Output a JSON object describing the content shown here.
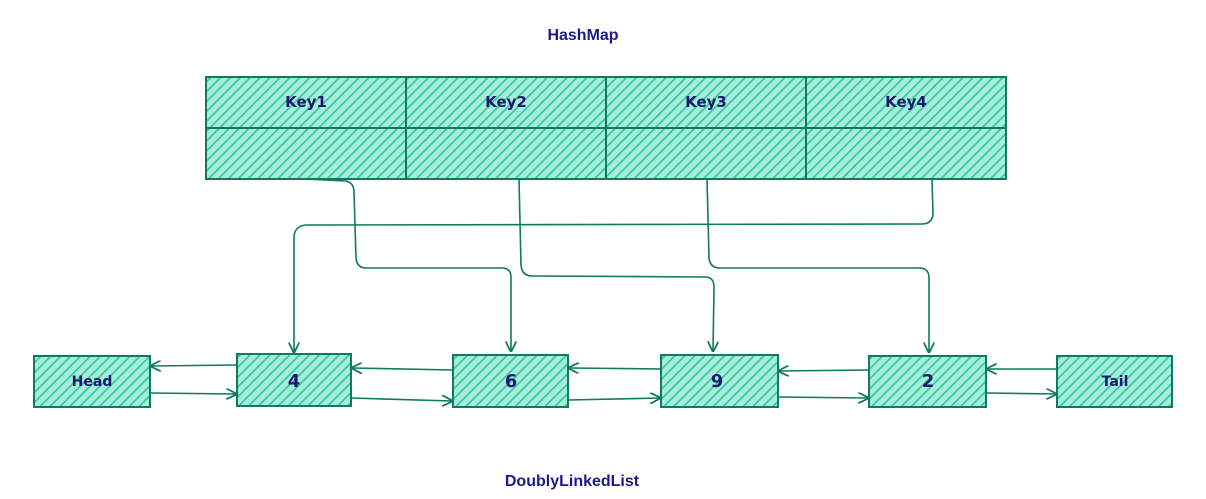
{
  "hashmap": {
    "title": "HashMap",
    "keys": [
      "Key1",
      "Key2",
      "Key3",
      "Key4"
    ]
  },
  "linked_list": {
    "title": "DoublyLinkedList",
    "nodes": [
      "Head",
      "4",
      "6",
      "9",
      "2",
      "Tail"
    ]
  },
  "colors": {
    "fill": "#3ed6b0",
    "stroke": "#0f7a5c",
    "text": "#1a1a6e",
    "title": "#1a1a8c"
  }
}
